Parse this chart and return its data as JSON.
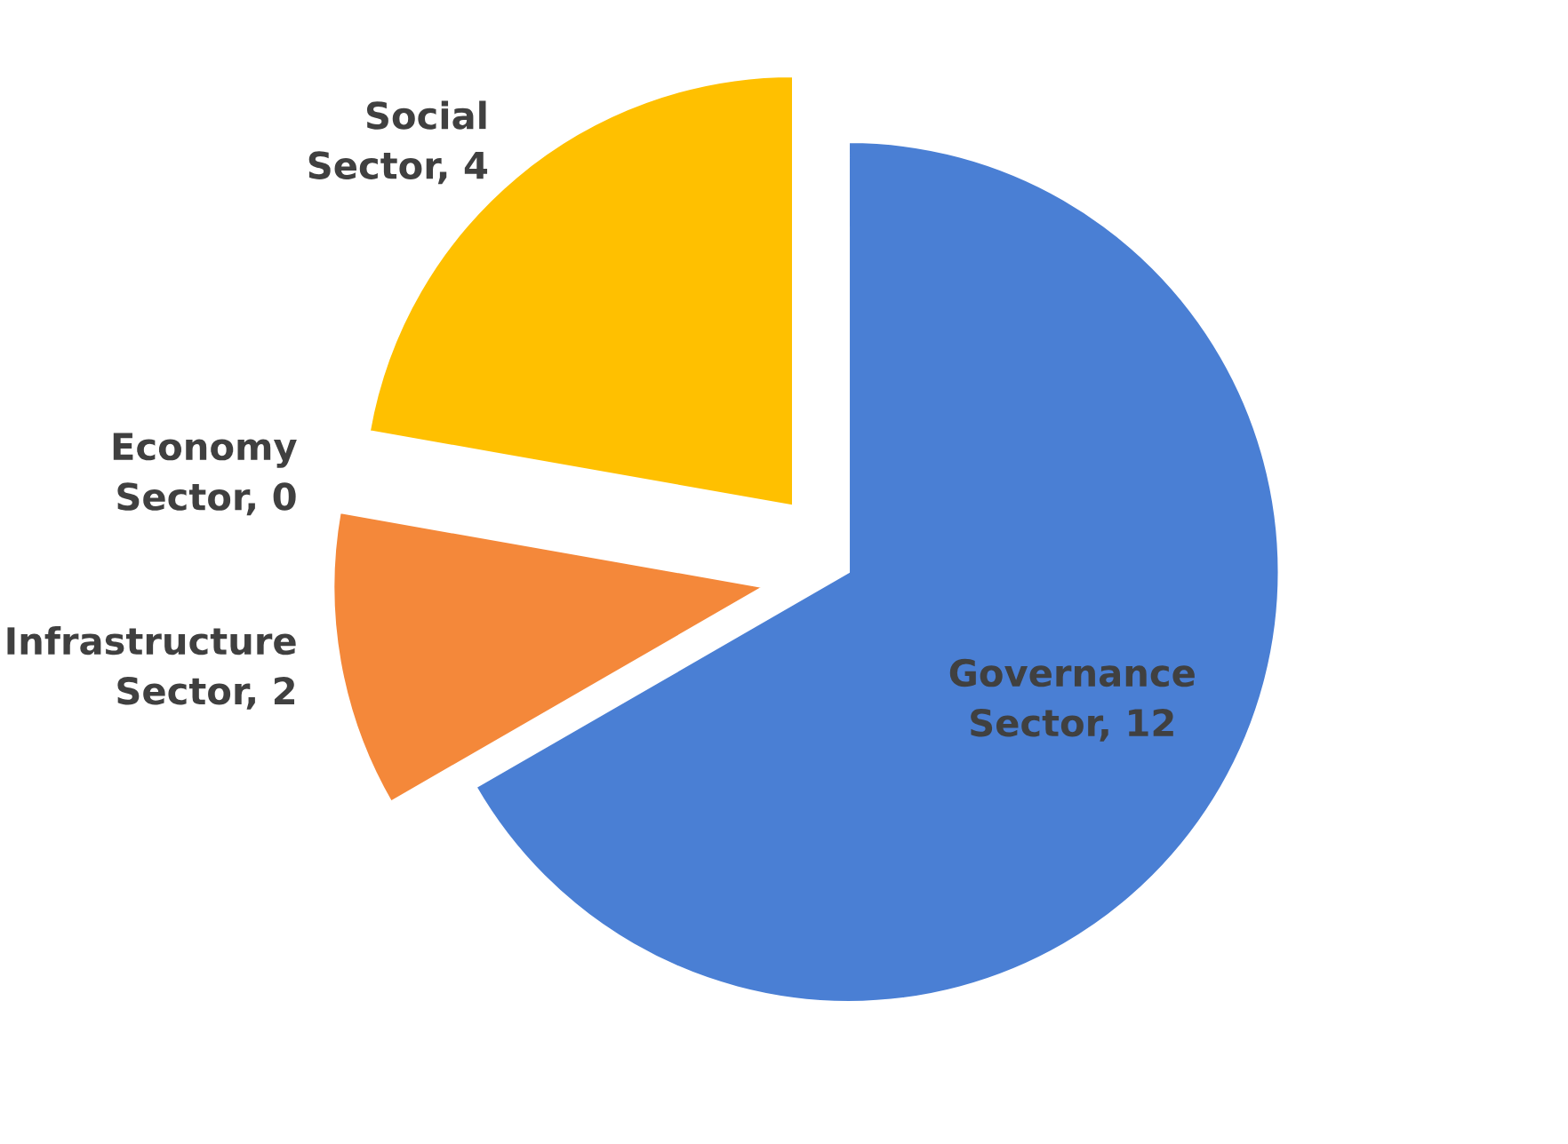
{
  "chart_data": {
    "type": "pie",
    "categories": [
      "Governance Sector, 12",
      "Infrastructure Sector, 2",
      "Economy Sector, 0",
      "Social Sector, 4"
    ],
    "values": [
      12,
      2,
      0,
      4
    ],
    "colors": [
      "#4a7fd4",
      "#f4883a",
      "#a5a5a5",
      "#ffc000"
    ]
  }
}
